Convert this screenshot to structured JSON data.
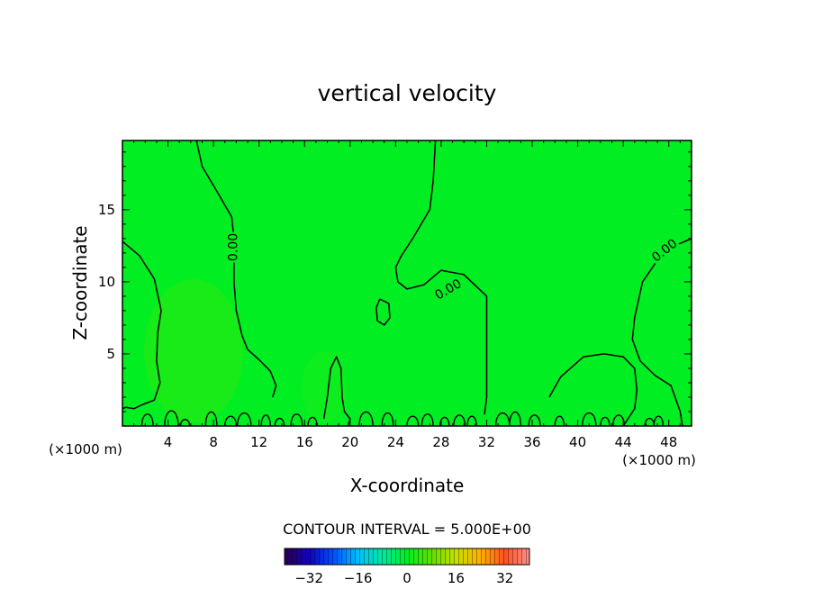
{
  "chart_data": {
    "type": "heatmap",
    "title": "vertical velocity",
    "xlabel": "X-coordinate",
    "ylabel": "Z-coordinate",
    "x_unit_left": "(×1000 m)",
    "x_unit_right": "(×1000 m)",
    "xlim": [
      0,
      50
    ],
    "ylim": [
      0,
      19.8
    ],
    "x_ticks": [
      4,
      8,
      12,
      16,
      20,
      24,
      28,
      32,
      36,
      40,
      44,
      48
    ],
    "y_ticks": [
      5,
      10,
      15
    ],
    "grid": false,
    "field_color": "#00ee22",
    "contour_interval_label": "CONTOUR INTERVAL = 5.000E+00",
    "contour_label": "0.00",
    "colorbar": {
      "ticks": [
        -32,
        -16,
        0,
        16,
        32
      ],
      "range": [
        -40,
        40
      ],
      "colors": [
        "#2a0050",
        "#1000c0",
        "#0050ff",
        "#00c0ff",
        "#00e8a0",
        "#00ee22",
        "#60e000",
        "#c8e000",
        "#ffb000",
        "#ff5020",
        "#ff9090"
      ]
    },
    "contours": [
      {
        "name": "upper-left",
        "points": [
          [
            6.5,
            19.8
          ],
          [
            7,
            18
          ],
          [
            8.5,
            16
          ],
          [
            9.6,
            14.5
          ],
          [
            9.8,
            13
          ],
          [
            9.8,
            11.5
          ],
          [
            9.8,
            10
          ],
          [
            10,
            8
          ],
          [
            10.5,
            6.3
          ],
          [
            11,
            5.3
          ],
          [
            12,
            4.6
          ],
          [
            13,
            3.8
          ],
          [
            13.5,
            2.8
          ],
          [
            13.2,
            2
          ]
        ]
      },
      {
        "name": "left-edge",
        "points": [
          [
            0,
            12.8
          ],
          [
            1.5,
            11.8
          ],
          [
            2.8,
            10.2
          ],
          [
            3.4,
            8
          ],
          [
            3.1,
            6.5
          ],
          [
            3,
            4.5
          ],
          [
            3.3,
            3
          ],
          [
            2.8,
            1.8
          ],
          [
            1.8,
            1.5
          ],
          [
            1,
            1.2
          ],
          [
            0.3,
            1.3
          ],
          [
            0,
            1.2
          ]
        ]
      },
      {
        "name": "mid-upper",
        "points": [
          [
            27.5,
            19.8
          ],
          [
            27.3,
            17
          ],
          [
            27,
            15
          ],
          [
            25.5,
            13
          ],
          [
            24.5,
            11.8
          ],
          [
            24,
            11
          ],
          [
            24.2,
            10
          ],
          [
            25,
            9.5
          ],
          [
            26.5,
            9.8
          ],
          [
            28,
            10.8
          ],
          [
            30,
            10.5
          ],
          [
            32,
            9
          ],
          [
            32,
            6
          ],
          [
            32,
            4
          ],
          [
            32,
            2
          ],
          [
            31.8,
            0.8
          ]
        ]
      },
      {
        "name": "small-loop",
        "points": [
          [
            22.6,
            8.8
          ],
          [
            23.4,
            8.5
          ],
          [
            23.5,
            7.5
          ],
          [
            23,
            7
          ],
          [
            22.4,
            7.3
          ],
          [
            22.3,
            8.2
          ],
          [
            22.6,
            8.8
          ]
        ]
      },
      {
        "name": "right-upper",
        "points": [
          [
            50,
            13
          ],
          [
            48.5,
            12.5
          ],
          [
            47,
            11.5
          ],
          [
            45.7,
            10
          ],
          [
            45,
            7.5
          ],
          [
            44.8,
            6
          ],
          [
            45.5,
            4.5
          ],
          [
            46.8,
            3.5
          ],
          [
            48.2,
            2.8
          ],
          [
            49,
            1
          ],
          [
            49.2,
            0
          ]
        ]
      },
      {
        "name": "right-lower",
        "points": [
          [
            37.5,
            2
          ],
          [
            38.5,
            3.4
          ],
          [
            40.5,
            4.8
          ],
          [
            42.3,
            5
          ],
          [
            44,
            4.8
          ],
          [
            45,
            4
          ],
          [
            45.2,
            2.5
          ],
          [
            45,
            1.2
          ],
          [
            44.5,
            0.6
          ],
          [
            44,
            0
          ]
        ]
      },
      {
        "name": "center-spike",
        "points": [
          [
            17.7,
            0.5
          ],
          [
            18,
            2
          ],
          [
            18.3,
            4
          ],
          [
            18.8,
            4.8
          ],
          [
            19.2,
            4
          ],
          [
            19.3,
            2
          ],
          [
            19.5,
            1
          ],
          [
            20,
            0.5
          ],
          [
            19.8,
            0
          ]
        ]
      }
    ]
  },
  "page": {
    "contour_interval_text": "CONTOUR INTERVAL = 5.000E+00"
  }
}
